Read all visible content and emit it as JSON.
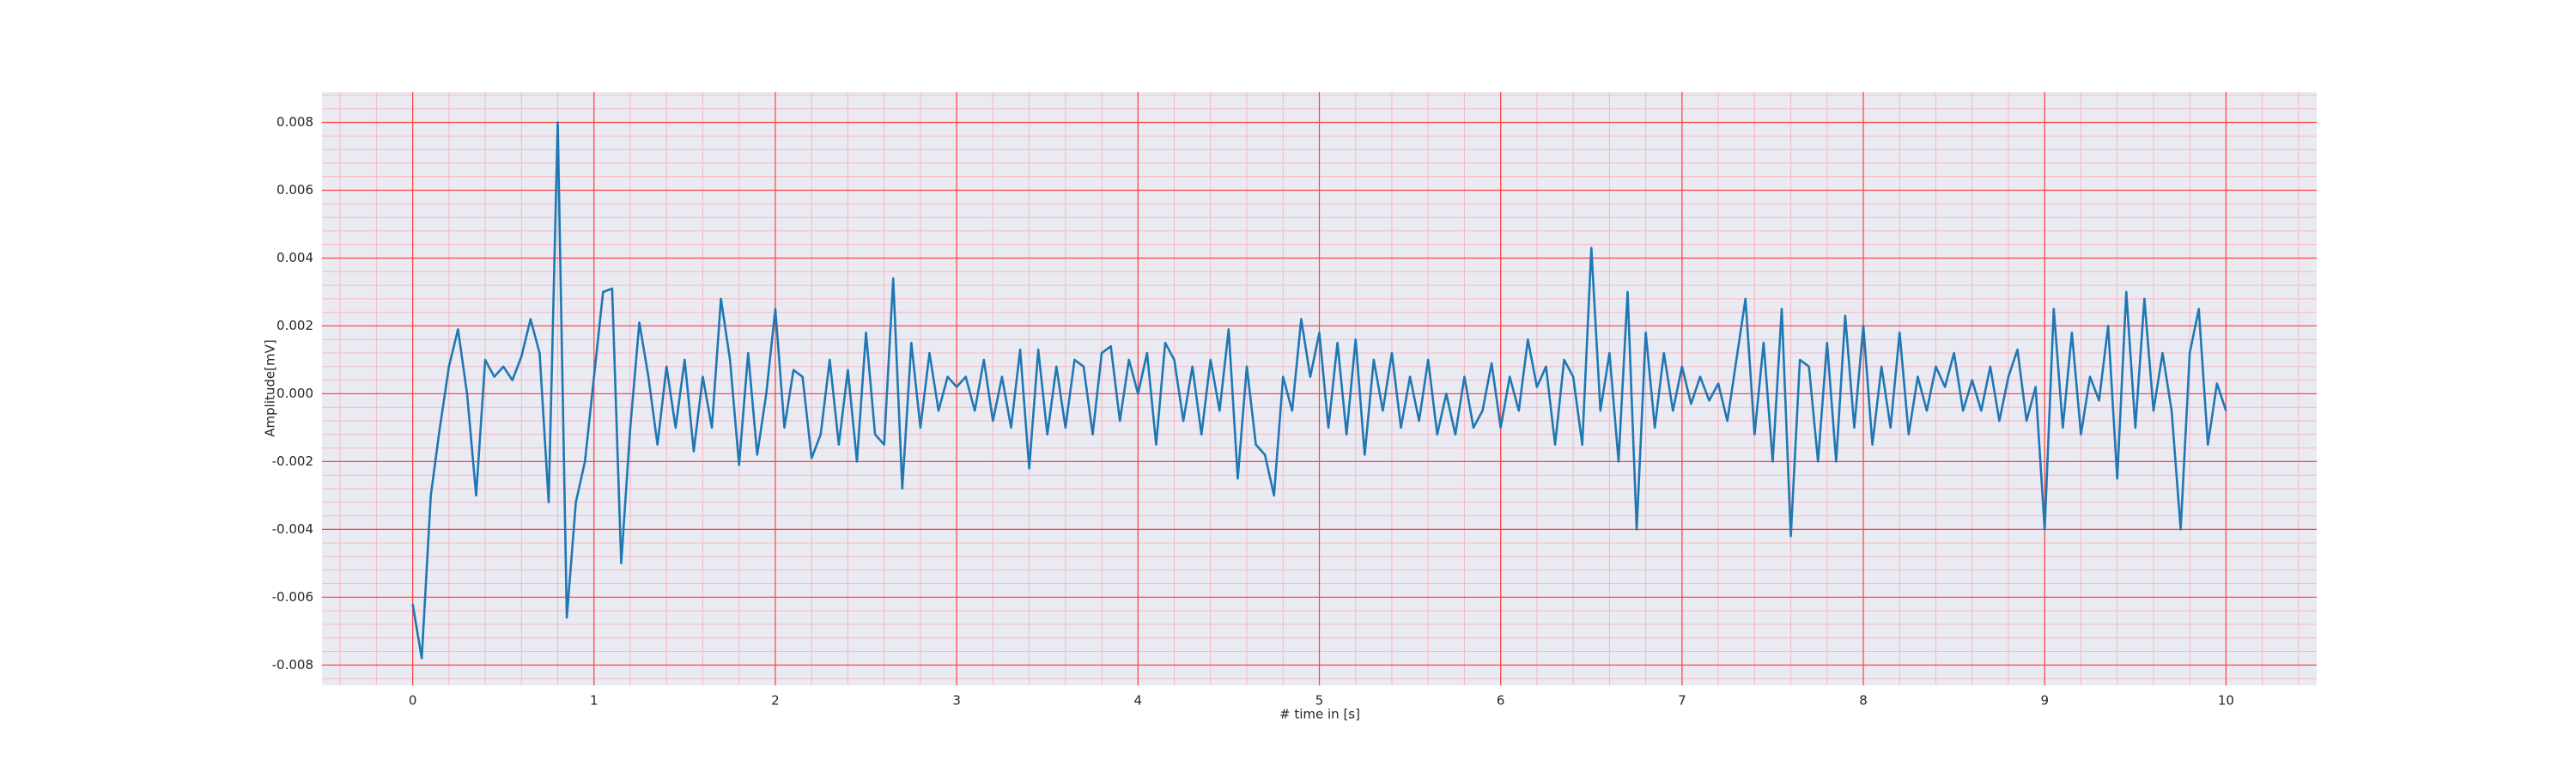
{
  "chart_data": {
    "type": "line",
    "xlabel": "# time in [s]",
    "ylabel": "Amplitude[mV]",
    "color": "#1f77b4",
    "x": [
      0.0,
      0.05,
      0.1,
      0.15,
      0.2,
      0.25,
      0.3,
      0.35,
      0.4,
      0.45,
      0.5,
      0.55,
      0.6,
      0.65,
      0.7,
      0.75,
      0.8,
      0.85,
      0.9,
      0.95,
      1.0,
      1.05,
      1.1,
      1.15,
      1.2,
      1.25,
      1.3,
      1.35,
      1.4,
      1.45,
      1.5,
      1.55,
      1.6,
      1.65,
      1.7,
      1.75,
      1.8,
      1.85,
      1.9,
      1.95,
      2.0,
      2.05,
      2.1,
      2.15,
      2.2,
      2.25,
      2.3,
      2.35,
      2.4,
      2.45,
      2.5,
      2.55,
      2.6,
      2.65,
      2.7,
      2.75,
      2.8,
      2.85,
      2.9,
      2.95,
      3.0,
      3.05,
      3.1,
      3.15,
      3.2,
      3.25,
      3.3,
      3.35,
      3.4,
      3.45,
      3.5,
      3.55,
      3.6,
      3.65,
      3.7,
      3.75,
      3.8,
      3.85,
      3.9,
      3.95,
      4.0,
      4.05,
      4.1,
      4.15,
      4.2,
      4.25,
      4.3,
      4.35,
      4.4,
      4.45,
      4.5,
      4.55,
      4.6,
      4.65,
      4.7,
      4.75,
      4.8,
      4.85,
      4.9,
      4.95,
      5.0,
      5.05,
      5.1,
      5.15,
      5.2,
      5.25,
      5.3,
      5.35,
      5.4,
      5.45,
      5.5,
      5.55,
      5.6,
      5.65,
      5.7,
      5.75,
      5.8,
      5.85,
      5.9,
      5.95,
      6.0,
      6.05,
      6.1,
      6.15,
      6.2,
      6.25,
      6.3,
      6.35,
      6.4,
      6.45,
      6.5,
      6.55,
      6.6,
      6.65,
      6.7,
      6.75,
      6.8,
      6.85,
      6.9,
      6.95,
      7.0,
      7.05,
      7.1,
      7.15,
      7.2,
      7.25,
      7.3,
      7.35,
      7.4,
      7.45,
      7.5,
      7.55,
      7.6,
      7.65,
      7.7,
      7.75,
      7.8,
      7.85,
      7.9,
      7.95,
      8.0,
      8.05,
      8.1,
      8.15,
      8.2,
      8.25,
      8.3,
      8.35,
      8.4,
      8.45,
      8.5,
      8.55,
      8.6,
      8.65,
      8.7,
      8.75,
      8.8,
      8.85,
      8.9,
      8.95,
      9.0,
      9.05,
      9.1,
      9.15,
      9.2,
      9.25,
      9.3,
      9.35,
      9.4,
      9.45,
      9.5,
      9.55,
      9.6,
      9.65,
      9.7,
      9.75,
      9.8,
      9.85,
      9.9,
      9.95,
      10.0
    ],
    "values": [
      -0.0062,
      -0.0078,
      -0.003,
      -0.001,
      0.0008,
      0.0019,
      0.0,
      -0.003,
      0.001,
      0.0005,
      0.0008,
      0.0004,
      0.0011,
      0.0022,
      0.0012,
      -0.0032,
      0.008,
      -0.0066,
      -0.0032,
      -0.002,
      0.0005,
      0.003,
      0.0031,
      -0.005,
      -0.001,
      0.0021,
      0.0005,
      -0.0015,
      0.0008,
      -0.001,
      0.001,
      -0.0017,
      0.0005,
      -0.001,
      0.0028,
      0.001,
      -0.0021,
      0.0012,
      -0.0018,
      0.0,
      0.0025,
      -0.001,
      0.0007,
      0.0005,
      -0.0019,
      -0.0012,
      0.001,
      -0.0015,
      0.0007,
      -0.002,
      0.0018,
      -0.0012,
      -0.0015,
      0.0034,
      -0.0028,
      0.0015,
      -0.001,
      0.0012,
      -0.0005,
      0.0005,
      0.0002,
      0.0005,
      -0.0005,
      0.001,
      -0.0008,
      0.0005,
      -0.001,
      0.0013,
      -0.0022,
      0.0013,
      -0.0012,
      0.0008,
      -0.001,
      0.001,
      0.0008,
      -0.0012,
      0.0012,
      0.0014,
      -0.0008,
      0.001,
      0.0,
      0.0012,
      -0.0015,
      0.0015,
      0.001,
      -0.0008,
      0.0008,
      -0.0012,
      0.001,
      -0.0005,
      0.0019,
      -0.0025,
      0.0008,
      -0.0015,
      -0.0018,
      -0.003,
      0.0005,
      -0.0005,
      0.0022,
      0.0005,
      0.0018,
      -0.001,
      0.0015,
      -0.0012,
      0.0016,
      -0.0018,
      0.001,
      -0.0005,
      0.0012,
      -0.001,
      0.0005,
      -0.0008,
      0.001,
      -0.0012,
      0.0,
      -0.0012,
      0.0005,
      -0.001,
      -0.0005,
      0.0009,
      -0.001,
      0.0005,
      -0.0005,
      0.0016,
      0.0002,
      0.0008,
      -0.0015,
      0.001,
      0.0005,
      -0.0015,
      0.0043,
      -0.0005,
      0.0012,
      -0.002,
      0.003,
      -0.004,
      0.0018,
      -0.001,
      0.0012,
      -0.0005,
      0.0008,
      -0.0003,
      0.0005,
      -0.0002,
      0.0003,
      -0.0008,
      0.001,
      0.0028,
      -0.0012,
      0.0015,
      -0.002,
      0.0025,
      -0.0042,
      0.001,
      0.0008,
      -0.002,
      0.0015,
      -0.002,
      0.0023,
      -0.001,
      0.002,
      -0.0015,
      0.0008,
      -0.001,
      0.0018,
      -0.0012,
      0.0005,
      -0.0005,
      0.0008,
      0.0002,
      0.0012,
      -0.0005,
      0.0004,
      -0.0005,
      0.0008,
      -0.0008,
      0.0005,
      0.0013,
      -0.0008,
      0.0002,
      -0.004,
      0.0025,
      -0.001,
      0.0018,
      -0.0012,
      0.0005,
      -0.0002,
      0.002,
      -0.0025,
      0.003,
      -0.001,
      0.0028,
      -0.0005,
      0.0012,
      -0.0005,
      -0.004,
      0.0012,
      0.0025,
      -0.0015,
      0.0003,
      -0.0005
    ],
    "xlim": [
      -0.5,
      10.5
    ],
    "xticks": [
      0,
      1,
      2,
      3,
      4,
      5,
      6,
      7,
      8,
      9,
      10
    ],
    "ylim": [
      -0.0086,
      0.0089
    ],
    "yticks": [
      -0.008,
      -0.006,
      -0.004,
      -0.002,
      {
        "value": 0,
        "label": "0.000"
      },
      0.002,
      0.004,
      0.006,
      0.008
    ],
    "grid": true,
    "grid_color": "#ff4040",
    "minor_grid": true,
    "minor_grid_color": "#f5b8c4",
    "background": "#eaeaf2"
  }
}
